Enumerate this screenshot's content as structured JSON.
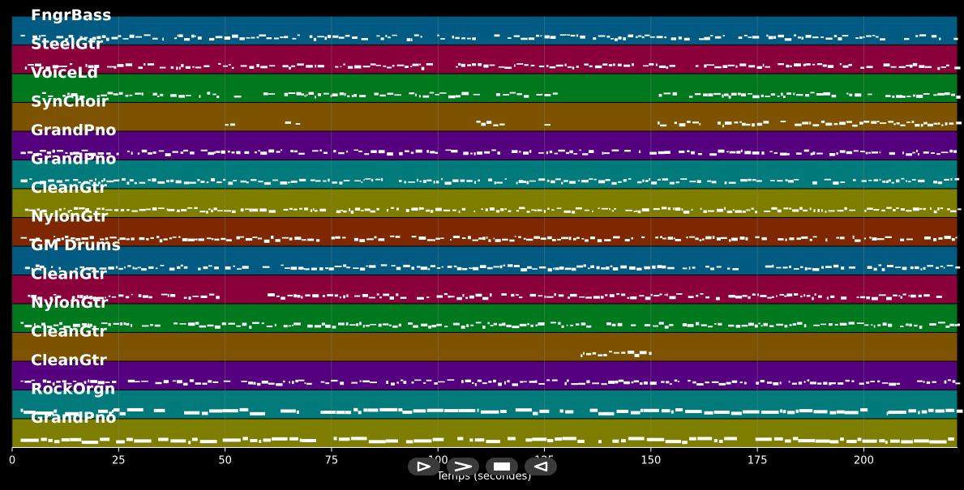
{
  "tracks": [
    {
      "name": "FngrBass",
      "color": "#005a82"
    },
    {
      "name": "SteelGtr",
      "color": "#8a003a"
    },
    {
      "name": "VoiceLd",
      "color": "#00781e"
    },
    {
      "name": "SynChoir",
      "color": "#7d5200"
    },
    {
      "name": "GrandPno",
      "color": "#55007f"
    },
    {
      "name": "GrandPno",
      "color": "#007a7a"
    },
    {
      "name": "CleanGtr",
      "color": "#7d7d00"
    },
    {
      "name": "NylonGtr",
      "color": "#7d2800"
    },
    {
      "name": "GM Drums",
      "color": "#005a82"
    },
    {
      "name": "CleanGtr",
      "color": "#8a003a"
    },
    {
      "name": "NylonGtr",
      "color": "#00781e"
    },
    {
      "name": "CleanGtr",
      "color": "#7d5200"
    },
    {
      "name": "CleanGtr",
      "color": "#55007f"
    },
    {
      "name": "RockOrgn",
      "color": "#007a7a"
    },
    {
      "name": "GrandPno",
      "color": "#7d7d00"
    }
  ],
  "axis": {
    "label": "Temps (secondes)",
    "ticks": [
      "0",
      "25",
      "50",
      "75",
      "100",
      "125",
      "150",
      "175",
      "200"
    ],
    "tick_values": [
      0,
      25,
      50,
      75,
      100,
      125,
      150,
      175,
      200
    ],
    "max_seconds": 222
  },
  "transport": {
    "buttons": [
      {
        "name": "play-button",
        "icon": "play-icon"
      },
      {
        "name": "forward-button",
        "icon": "forward-icon"
      },
      {
        "name": "stop-button",
        "icon": "stop-icon"
      },
      {
        "name": "rewind-button",
        "icon": "rewind-icon"
      }
    ]
  },
  "colors": {
    "background": "#000000",
    "note": "#ffffff",
    "grid": "#8a8a8a"
  }
}
